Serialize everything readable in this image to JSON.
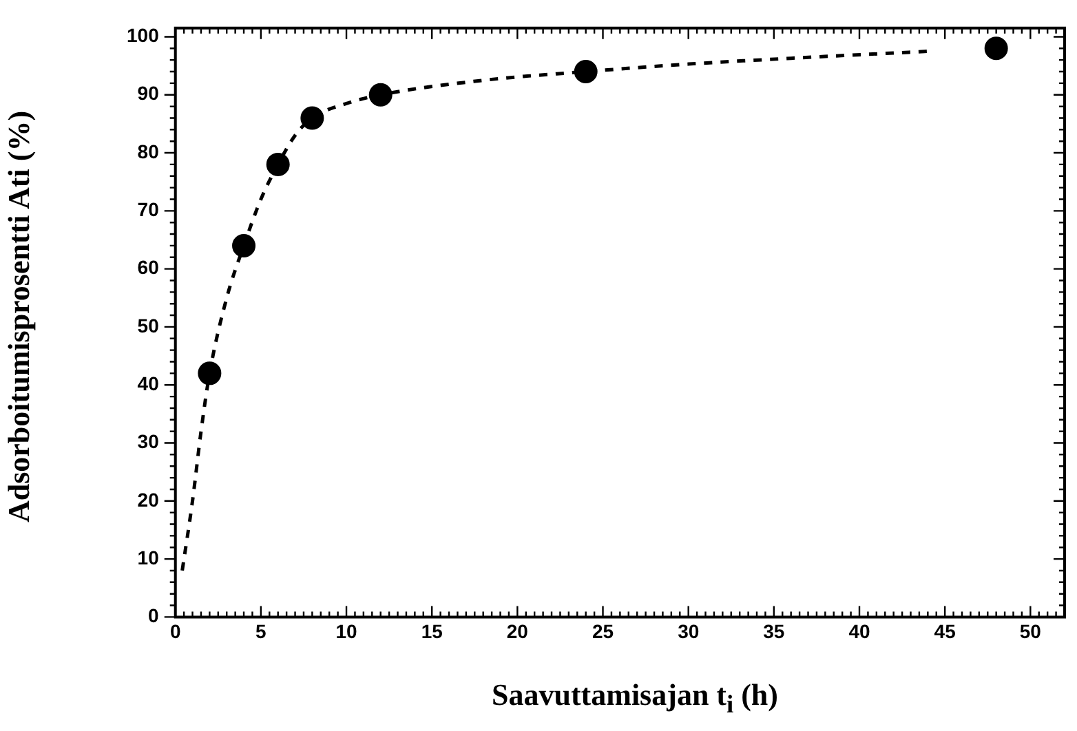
{
  "chart_data": {
    "type": "scatter",
    "xlabel": "Saavuttamisajan t$_{i}$ (h)",
    "ylabel": "Adsorboitumisprosentti Ati (%)",
    "xlim": [
      0,
      52
    ],
    "xticks": [
      0,
      5,
      10,
      15,
      20,
      25,
      30,
      35,
      40,
      45,
      50
    ],
    "ylim": [
      0,
      101.5
    ],
    "yticks": [
      0,
      10,
      20,
      30,
      40,
      50,
      60,
      70,
      80,
      90,
      100
    ],
    "grid": false,
    "legend": false,
    "series": [
      {
        "color": "#000000",
        "marker": "circle",
        "x": [
          2,
          4,
          6,
          8,
          12,
          24,
          48
        ],
        "values": [
          42,
          64,
          78,
          86,
          90,
          94,
          98
        ]
      },
      {
        "type": "line",
        "color": "#000000",
        "marker": "none",
        "line_style": "dashed",
        "x": [
          0.4,
          1,
          1.5,
          2,
          3,
          4,
          5,
          6,
          7,
          8,
          10,
          12,
          18,
          24,
          30,
          36,
          44
        ],
        "values": [
          8,
          20,
          32,
          42,
          55,
          64,
          72,
          78,
          83,
          86,
          88.5,
          90,
          92.5,
          94,
          95.3,
          96.3,
          97.5
        ]
      }
    ]
  }
}
